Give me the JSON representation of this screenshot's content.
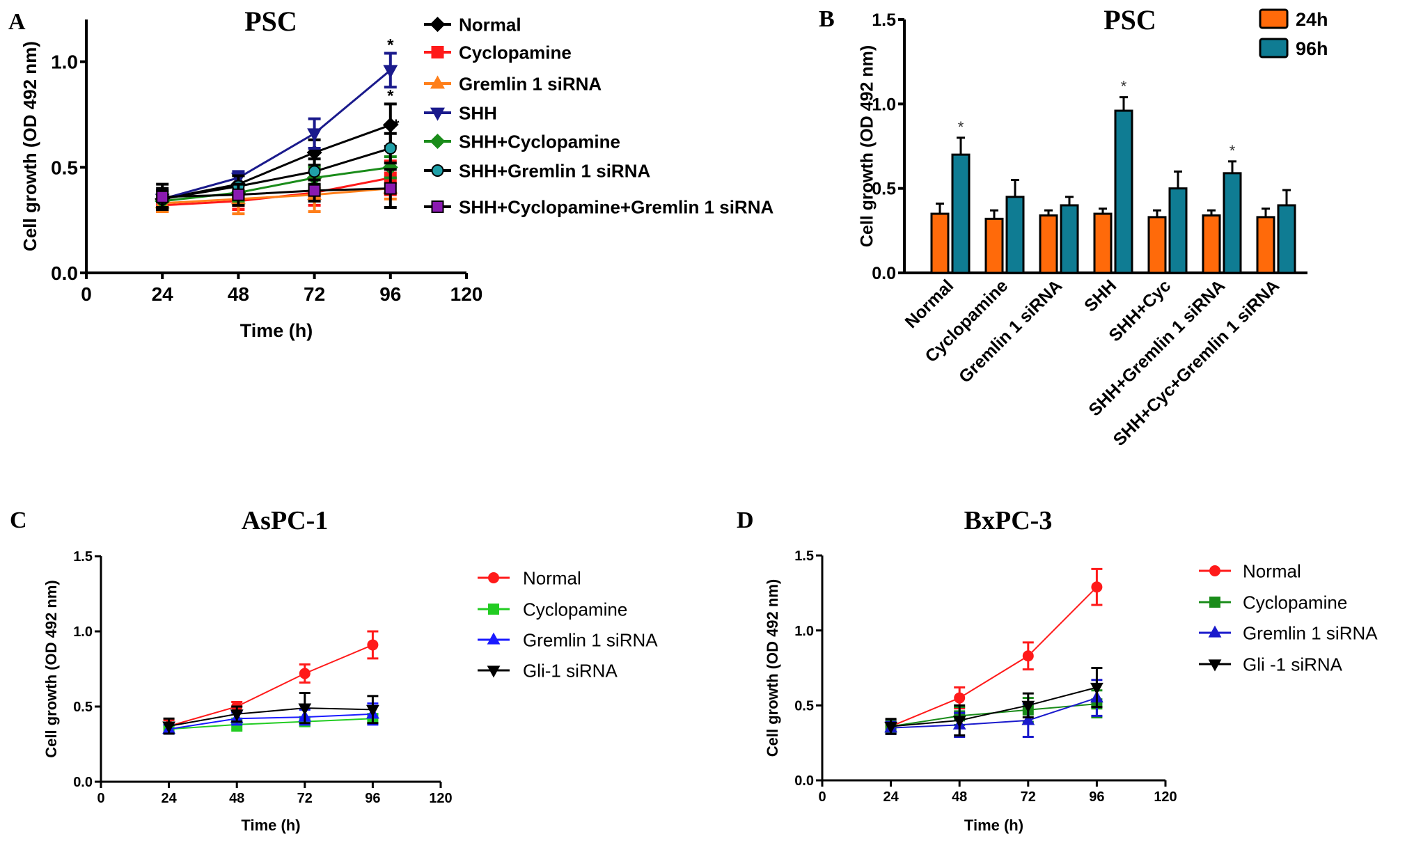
{
  "chart_data": [
    {
      "panel": "A",
      "type": "line",
      "title": "PSC",
      "xlabel": "Time (h)",
      "ylabel": "Cell growth (OD 492 nm)",
      "xlim": [
        0,
        120
      ],
      "ylim": [
        0,
        1.2
      ],
      "xticks": [
        "0",
        "24",
        "48",
        "72",
        "96",
        "120"
      ],
      "yticks": [
        "0.0",
        "0.5",
        "1.0"
      ],
      "x": [
        24,
        48,
        72,
        96
      ],
      "legend_position": "right",
      "series": [
        {
          "name": "Normal",
          "color": "#000000",
          "marker": "diamond",
          "values": [
            0.35,
            0.42,
            0.57,
            0.7
          ],
          "errors": [
            0.05,
            0.04,
            0.06,
            0.1
          ],
          "star": "*"
        },
        {
          "name": "Cyclopamine",
          "color": "#ff1a1a",
          "marker": "square",
          "values": [
            0.32,
            0.34,
            0.38,
            0.45
          ],
          "errors": [
            0.03,
            0.04,
            0.06,
            0.08
          ]
        },
        {
          "name": "Gremlin 1  siRNA",
          "color": "#ff7f1a",
          "marker": "triangle-up",
          "values": [
            0.33,
            0.35,
            0.37,
            0.4
          ],
          "errors": [
            0.04,
            0.07,
            0.08,
            0.05
          ]
        },
        {
          "name": "SHH",
          "color": "#1a1a8c",
          "marker": "triangle-down",
          "values": [
            0.35,
            0.45,
            0.66,
            0.96
          ],
          "errors": [
            0.04,
            0.03,
            0.07,
            0.08
          ],
          "star": "*"
        },
        {
          "name": "SHH+Cyclopamine",
          "color": "#1a8c1a",
          "marker": "diamond",
          "values": [
            0.34,
            0.38,
            0.45,
            0.5
          ],
          "errors": [
            0.03,
            0.04,
            0.05,
            0.05
          ]
        },
        {
          "name": "SHH+Gremlin 1 siRNA",
          "color": "#000000",
          "marker": "circle-teal",
          "values": [
            0.35,
            0.41,
            0.48,
            0.59
          ],
          "errors": [
            0.04,
            0.05,
            0.06,
            0.07
          ],
          "star": "*"
        },
        {
          "name": "SHH+Cyclopamine+Gremlin 1 siRNA",
          "color": "#000000",
          "marker": "square-purple",
          "values": [
            0.36,
            0.37,
            0.39,
            0.4
          ],
          "errors": [
            0.06,
            0.05,
            0.05,
            0.09
          ]
        }
      ]
    },
    {
      "panel": "B",
      "type": "bar",
      "title": "PSC",
      "ylabel": "Cell growth (OD 492 nm)",
      "ylim": [
        0,
        1.5
      ],
      "yticks": [
        "0.0",
        "0.5",
        "1.0",
        "1.5"
      ],
      "categories": [
        "Normal",
        "Cyclopamine",
        "Gremlin 1  siRNA",
        "SHH",
        "SHH+Cyc",
        "SHH+Gremlin 1 siRNA",
        "SHH+Cyc+Gremlin 1 siRNA"
      ],
      "legend_position": "top-right",
      "series": [
        {
          "name": "24h",
          "color": "#ff6a0a",
          "values": [
            0.35,
            0.32,
            0.34,
            0.35,
            0.33,
            0.34,
            0.33
          ],
          "errors": [
            0.06,
            0.05,
            0.03,
            0.03,
            0.04,
            0.03,
            0.05
          ]
        },
        {
          "name": "96h",
          "color": "#0f7c93",
          "values": [
            0.7,
            0.45,
            0.4,
            0.96,
            0.5,
            0.59,
            0.4
          ],
          "errors": [
            0.1,
            0.1,
            0.05,
            0.08,
            0.1,
            0.07,
            0.09
          ],
          "stars": [
            "*",
            "",
            "",
            "*",
            "",
            "*",
            ""
          ]
        }
      ]
    },
    {
      "panel": "C",
      "type": "line",
      "title": "AsPC-1",
      "xlabel": "Time (h)",
      "ylabel": "Cell growth (OD 492 nm)",
      "xlim": [
        0,
        120
      ],
      "ylim": [
        0,
        1.5
      ],
      "xticks": [
        "0",
        "24",
        "48",
        "72",
        "96",
        "120"
      ],
      "yticks": [
        "0.0",
        "0.5",
        "1.0",
        "1.5"
      ],
      "x": [
        24,
        48,
        72,
        96
      ],
      "legend_position": "right",
      "series": [
        {
          "name": "Normal",
          "color": "#ff1a1a",
          "marker": "circle",
          "values": [
            0.37,
            0.5,
            0.72,
            0.91
          ],
          "errors": [
            0.04,
            0.03,
            0.06,
            0.09
          ]
        },
        {
          "name": "Cyclopamine",
          "color": "#22cc22",
          "marker": "square",
          "values": [
            0.35,
            0.38,
            0.4,
            0.42
          ],
          "errors": [
            0.03,
            0.04,
            0.03,
            0.03
          ]
        },
        {
          "name": "Gremlin 1 siRNA",
          "color": "#1a1aff",
          "marker": "triangle-up",
          "values": [
            0.35,
            0.42,
            0.43,
            0.45
          ],
          "errors": [
            0.03,
            0.04,
            0.05,
            0.07
          ]
        },
        {
          "name": "Gli-1 siRNA",
          "color": "#000000",
          "marker": "triangle-down",
          "values": [
            0.37,
            0.45,
            0.49,
            0.48
          ],
          "errors": [
            0.05,
            0.05,
            0.1,
            0.09
          ]
        }
      ]
    },
    {
      "panel": "D",
      "type": "line",
      "title": "BxPC-3",
      "xlabel": "Time (h)",
      "ylabel": "Cell growth (OD 492 nm)",
      "xlim": [
        0,
        120
      ],
      "ylim": [
        0,
        1.5
      ],
      "xticks": [
        "0",
        "24",
        "48",
        "72",
        "96",
        "120"
      ],
      "yticks": [
        "0.0",
        "0.5",
        "1.0",
        "1.5"
      ],
      "x": [
        24,
        48,
        72,
        96
      ],
      "legend_position": "right",
      "series": [
        {
          "name": "Normal",
          "color": "#ff1a1a",
          "marker": "circle",
          "values": [
            0.36,
            0.55,
            0.83,
            1.29
          ],
          "errors": [
            0.04,
            0.07,
            0.09,
            0.12
          ]
        },
        {
          "name": "Cyclopamine",
          "color": "#1a8c1a",
          "marker": "square",
          "values": [
            0.36,
            0.43,
            0.47,
            0.51
          ],
          "errors": [
            0.04,
            0.06,
            0.08,
            0.09
          ]
        },
        {
          "name": "Gremlin 1 siRNA",
          "color": "#1a1acc",
          "marker": "triangle-up",
          "values": [
            0.35,
            0.37,
            0.4,
            0.55
          ],
          "errors": [
            0.04,
            0.08,
            0.11,
            0.12
          ]
        },
        {
          "name": "Gli -1 siRNA",
          "color": "#000000",
          "marker": "triangle-down",
          "values": [
            0.36,
            0.4,
            0.5,
            0.62
          ],
          "errors": [
            0.05,
            0.1,
            0.08,
            0.13
          ]
        }
      ]
    }
  ]
}
